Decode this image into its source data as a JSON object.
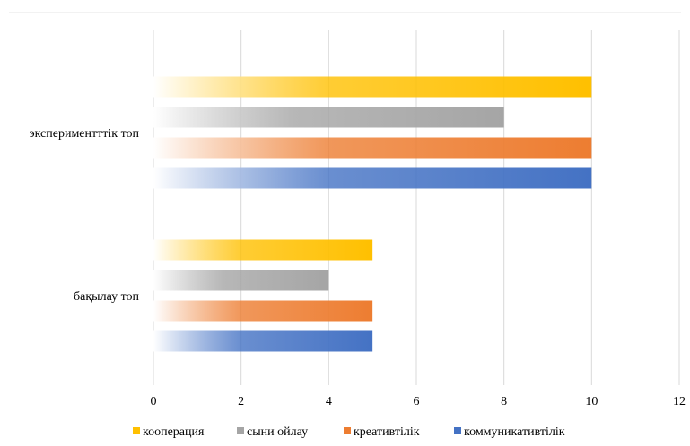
{
  "chart_data": {
    "type": "bar",
    "orientation": "horizontal",
    "categories": [
      "экспериментттік топ",
      "бақылау топ"
    ],
    "series": [
      {
        "name": "кооперация",
        "values": [
          10,
          5
        ],
        "color": "#FFC000"
      },
      {
        "name": "сыни ойлау",
        "values": [
          8,
          4
        ],
        "color": "#A5A5A5"
      },
      {
        "name": "креативтілік",
        "values": [
          10,
          5
        ],
        "color": "#ED7D31"
      },
      {
        "name": "коммуникативтілік",
        "values": [
          10,
          5
        ],
        "color": "#4472C4"
      }
    ],
    "xticks": [
      "0",
      "2",
      "4",
      "6",
      "8",
      "10",
      "12"
    ],
    "xlim": [
      0,
      12
    ],
    "grid": true,
    "bar_fill": "gradient-from-white",
    "legend_position": "bottom"
  }
}
